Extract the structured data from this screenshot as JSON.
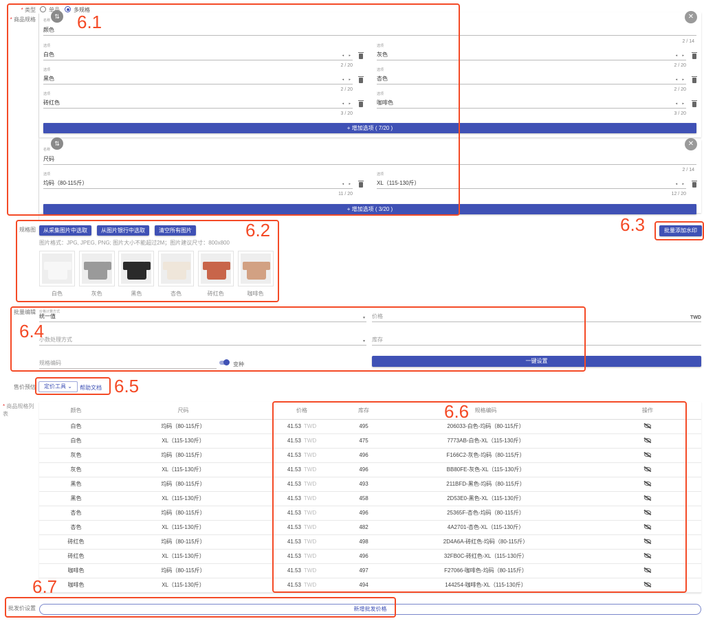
{
  "type_row": {
    "label": "类型",
    "options": [
      "单品",
      "多规格"
    ],
    "selected": "多规格"
  },
  "spec": {
    "label": "商品规格",
    "groups": [
      {
        "name_label": "名称",
        "name": "颜色",
        "name_count": "2 / 14",
        "option_label": "选项",
        "options": [
          {
            "value": "白色",
            "count": "2 / 20"
          },
          {
            "value": "灰色",
            "count": "2 / 20"
          },
          {
            "value": "黑色",
            "count": "2 / 20"
          },
          {
            "value": "杏色",
            "count": "2 / 20"
          },
          {
            "value": "砖红色",
            "count": "3 / 20"
          },
          {
            "value": "咖啡色",
            "count": "3 / 20"
          }
        ],
        "add_label": "+ 增加选项 ( 7/20 )"
      },
      {
        "name_label": "名称",
        "name": "尺码",
        "name_count": "2 / 14",
        "option_label": "选项",
        "options": [
          {
            "value": "均码（80-115斤）",
            "count": "11 / 20"
          },
          {
            "value": "XL（115-130斤）",
            "count": "12 / 20"
          }
        ],
        "add_label": "+ 增加选项 ( 3/20 )"
      }
    ]
  },
  "spec_images": {
    "label": "规格图",
    "buttons": [
      "从采集图片中选取",
      "从图片银行中选取",
      "清空所有图片"
    ],
    "hint": "图片格式：JPG, JPEG, PNG; 图片大小不能超过2M；图片建议尺寸：800x800",
    "images": [
      {
        "caption": "白色",
        "color": "#f7f7f7"
      },
      {
        "caption": "灰色",
        "color": "#9a9a9a"
      },
      {
        "caption": "黑色",
        "color": "#2a2a2a"
      },
      {
        "caption": "杏色",
        "color": "#efe6da"
      },
      {
        "caption": "砖红色",
        "color": "#c8654a"
      },
      {
        "caption": "咖啡色",
        "color": "#d2a183"
      }
    ],
    "watermark_button": "批量添加水印"
  },
  "batch_edit": {
    "label": "批量编辑",
    "price_method_label": "价格计算方式",
    "price_method_value": "统一值",
    "price_placeholder": "价格",
    "currency": "TWD",
    "decimal_placeholder": "小数处理方式",
    "stock_placeholder": "库存",
    "sku_placeholder": "规格编码",
    "variant_toggle_label": "变种",
    "variant_toggle_on": true,
    "apply_button": "一键设置"
  },
  "price_estimate": {
    "label": "售价预估",
    "tool_button": "定价工具",
    "help_link": "帮助文档"
  },
  "sku_table": {
    "label": "商品规格列表",
    "headers": [
      "颜色",
      "尺码",
      "价格",
      "库存",
      "规格编码",
      "操作"
    ],
    "rows": [
      [
        "白色",
        "均码（80-115斤）",
        "41.53",
        "495",
        "206033-白色-均码（80-115斤）"
      ],
      [
        "白色",
        "XL（115-130斤）",
        "41.53",
        "475",
        "7773AB-白色-XL（115-130斤）"
      ],
      [
        "灰色",
        "均码（80-115斤）",
        "41.53",
        "496",
        "F166C2-灰色-均码（80-115斤）"
      ],
      [
        "灰色",
        "XL（115-130斤）",
        "41.53",
        "496",
        "BB80FE-灰色-XL（115-130斤）"
      ],
      [
        "黑色",
        "均码（80-115斤）",
        "41.53",
        "493",
        "211BFD-黑色-均码（80-115斤）"
      ],
      [
        "黑色",
        "XL（115-130斤）",
        "41.53",
        "458",
        "2D53E0-黑色-XL（115-130斤）"
      ],
      [
        "杏色",
        "均码（80-115斤）",
        "41.53",
        "496",
        "25365F-杏色-均码（80-115斤）"
      ],
      [
        "杏色",
        "XL（115-130斤）",
        "41.53",
        "482",
        "4A2701-杏色-XL（115-130斤）"
      ],
      [
        "砖红色",
        "均码（80-115斤）",
        "41.53",
        "498",
        "2D4A6A-砖红色-均码（80-115斤）"
      ],
      [
        "砖红色",
        "XL（115-130斤）",
        "41.53",
        "496",
        "32FB0C-砖红色-XL（115-130斤）"
      ],
      [
        "咖啡色",
        "均码（80-115斤）",
        "41.53",
        "497",
        "F27066-咖啡色-均码（80-115斤）"
      ],
      [
        "咖啡色",
        "XL（115-130斤）",
        "41.53",
        "494",
        "144254-咖啡色-XL（115-130斤）"
      ]
    ],
    "currency": "TWD"
  },
  "wholesale": {
    "label": "批发价设置",
    "add_button": "新增批发价格"
  },
  "annotations": [
    "6.1",
    "6.2",
    "6.3",
    "6.4",
    "6.5",
    "6.6",
    "6.7"
  ],
  "colors": {
    "primary": "#3f51b5",
    "annotation": "#f44a26"
  }
}
